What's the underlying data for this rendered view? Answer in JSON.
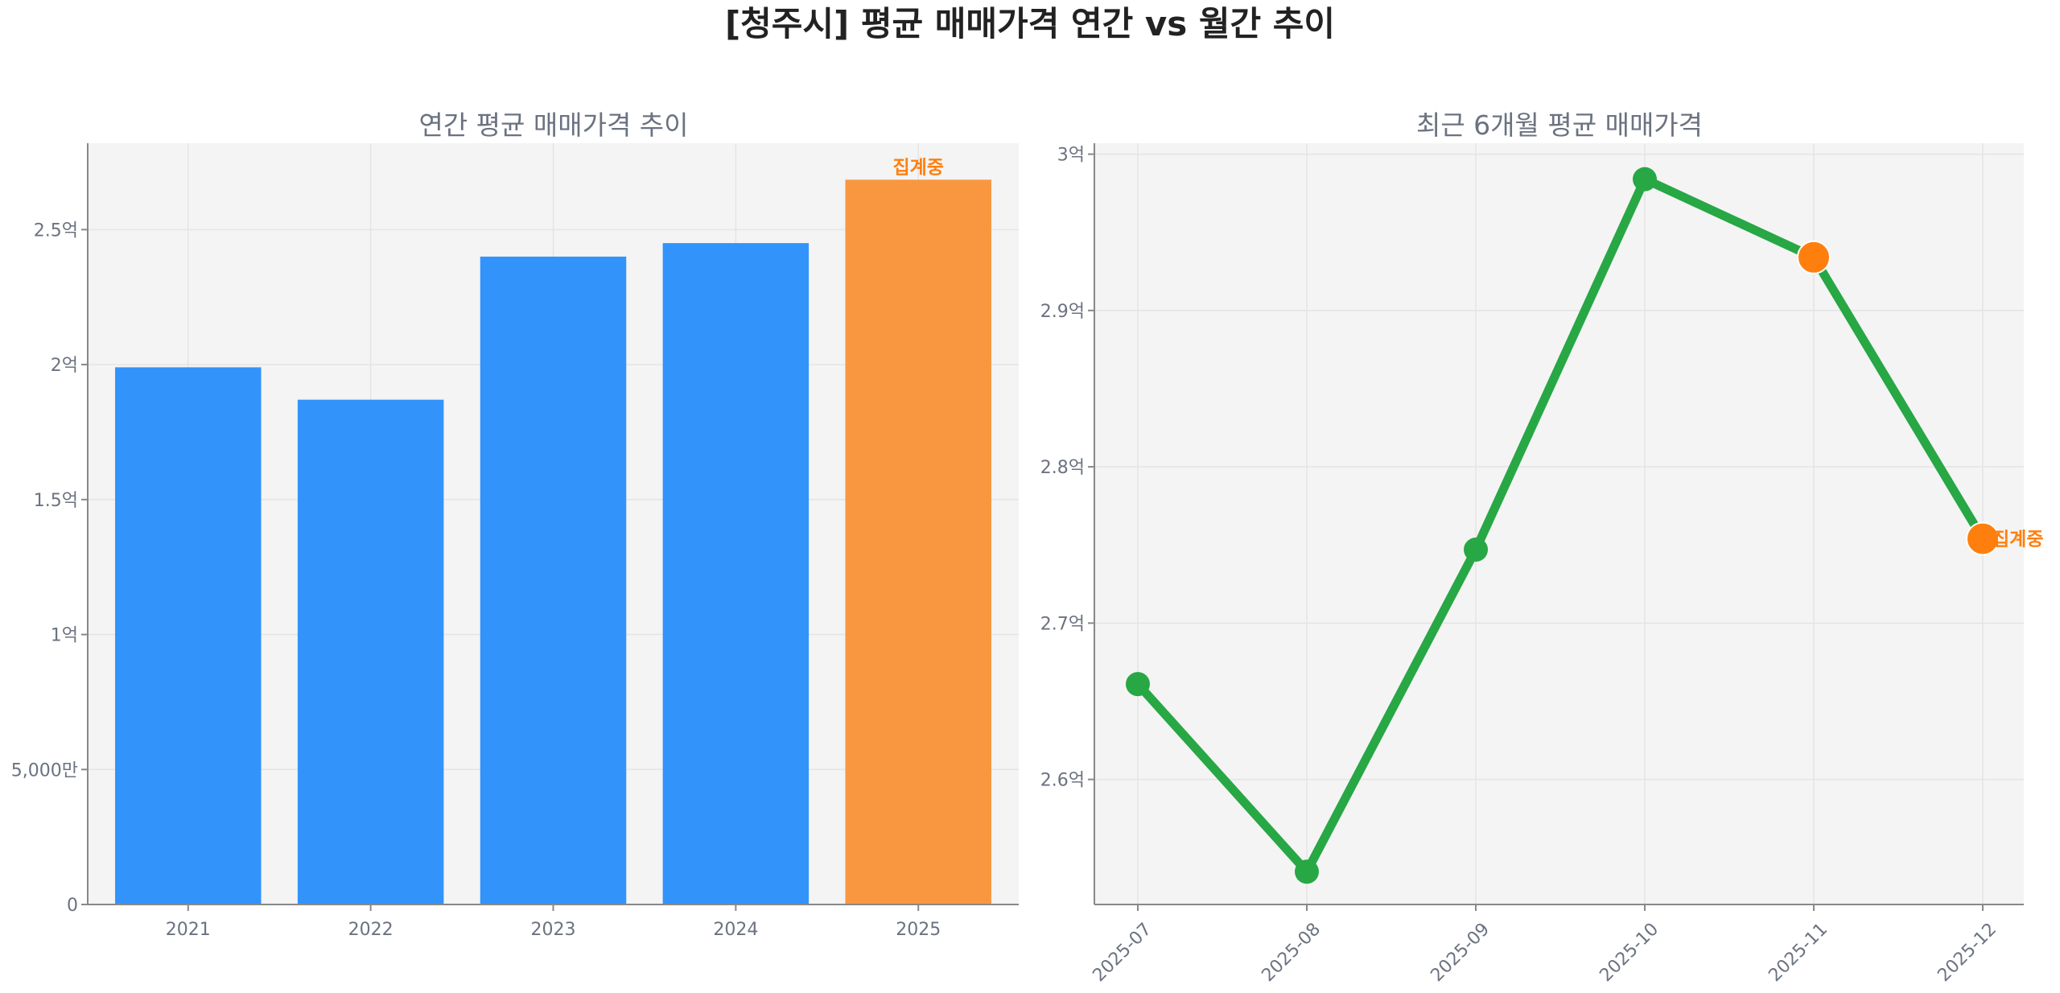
{
  "title": "[청주시] 평균 매매가격 연간 vs 월간 추이",
  "chart_data": [
    {
      "type": "bar",
      "title": "연간 평균 매매가격 추이",
      "unit": "억",
      "categories": [
        "2021",
        "2022",
        "2023",
        "2024",
        "2025"
      ],
      "values": [
        1.99,
        1.87,
        2.4,
        2.45,
        2.685
      ],
      "bar_colors": [
        "#3293fb",
        "#3293fb",
        "#3293fb",
        "#3293fb",
        "#f99740"
      ],
      "ylim": [
        0,
        2.82
      ],
      "yticks": [
        0,
        0.5,
        1,
        1.5,
        2,
        2.5
      ],
      "ytick_labels": [
        "0",
        "5,000만",
        "1억",
        "1.5억",
        "2억",
        "2.5억"
      ],
      "grid": true,
      "annotations": [
        {
          "category": "2025",
          "text": "집계중",
          "color": "#ff7f0e"
        }
      ]
    },
    {
      "type": "line",
      "title": "최근 6개월 평균 매매가격",
      "unit": "억",
      "x": [
        "2025-07",
        "2025-08",
        "2025-09",
        "2025-10",
        "2025-11",
        "2025-12"
      ],
      "values": [
        2.661,
        2.541,
        2.747,
        2.984,
        2.934,
        2.754
      ],
      "line_color": "#28a745",
      "marker_colors": [
        "#28a745",
        "#28a745",
        "#28a745",
        "#28a745",
        "#ff7f0e",
        "#ff7f0e"
      ],
      "ylim": [
        2.52,
        3.007
      ],
      "yticks": [
        2.6,
        2.7,
        2.8,
        2.9,
        3.0
      ],
      "ytick_labels": [
        "2.6억",
        "2.7억",
        "2.8억",
        "2.9억",
        "3억"
      ],
      "grid": true,
      "annotations": [
        {
          "x": "2025-12",
          "text": "집계중",
          "color": "#ff7f0e"
        }
      ]
    }
  ]
}
